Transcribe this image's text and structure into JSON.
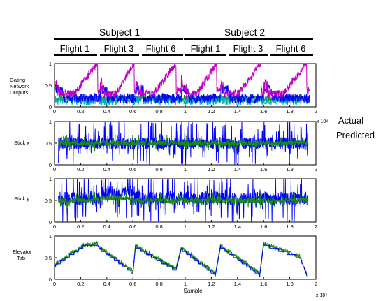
{
  "header": {
    "subjects": [
      {
        "label": "Subject 1",
        "flights": [
          "Flight 1",
          "Flight 3",
          "Flight 6"
        ]
      },
      {
        "label": "Subject 2",
        "flights": [
          "Flight 1",
          "Flight 3",
          "Flight 6"
        ]
      }
    ]
  },
  "legend": {
    "actual": {
      "label": "Actual",
      "color": "#0000ff"
    },
    "predicted": {
      "label": "Predicted",
      "color": "#1a8a1a"
    }
  },
  "chart_data": [
    {
      "type": "line",
      "ylabel": "Gating Network Outputs",
      "xlim": [
        0,
        20000
      ],
      "ylim": [
        0,
        1
      ],
      "xticks": [
        "0",
        "0.2",
        "0.4",
        "0.6",
        "0.8",
        "1",
        "1.2",
        "1.4",
        "1.6",
        "1.8",
        "2"
      ],
      "yticks": [
        "0",
        "0.5",
        "1"
      ],
      "x_multiplier_label": "x 10⁴",
      "series": [
        {
          "color": "#c000c0",
          "baseline": 0.3,
          "high_in_second_half_of_flight": 0.95,
          "approx_mean": 0.45
        },
        {
          "color": "#0000ff",
          "approx_mean": 0.2
        },
        {
          "color": "#00b0b0",
          "approx_mean": 0.15
        },
        {
          "color": "#1a8a1a",
          "approx_mean": 0.2
        }
      ]
    },
    {
      "type": "line",
      "ylabel": "Stick x",
      "xlim": [
        0,
        20000
      ],
      "ylim": [
        0,
        1
      ],
      "xticks": [
        "0",
        "0.2",
        "0.4",
        "0.6",
        "0.8",
        "1",
        "1.2",
        "1.4",
        "1.6",
        "1.8",
        "2"
      ],
      "yticks": [
        "0",
        "0.5",
        "1"
      ],
      "series": [
        {
          "name": "Actual",
          "color": "#0000ff",
          "approx_mean": 0.5,
          "spike_range": [
            0.1,
            0.9
          ]
        },
        {
          "name": "Predicted",
          "color": "#1a8a1a",
          "approx_mean": 0.5,
          "spike_range": [
            0.3,
            0.7
          ]
        }
      ]
    },
    {
      "type": "line",
      "ylabel": "Stick y",
      "xlim": [
        0,
        20000
      ],
      "ylim": [
        0,
        1
      ],
      "xticks": [
        "0",
        "0.2",
        "0.4",
        "0.6",
        "0.8",
        "1",
        "1.2",
        "1.4",
        "1.6",
        "1.8",
        "2"
      ],
      "yticks": [
        "0",
        "0.5",
        "1"
      ],
      "series": [
        {
          "name": "Actual",
          "color": "#0000ff",
          "approx_mean": 0.55,
          "spike_range": [
            0.05,
            0.95
          ]
        },
        {
          "name": "Predicted",
          "color": "#1a8a1a",
          "approx_mean": 0.5,
          "spike_range": [
            0.3,
            0.65
          ]
        }
      ]
    },
    {
      "type": "line",
      "ylabel": "Elevator Tab",
      "xlim": [
        0,
        20000
      ],
      "ylim": [
        0,
        1
      ],
      "xticks": [
        "0",
        "0.2",
        "0.4",
        "0.6",
        "0.8",
        "1",
        "1.2",
        "1.4",
        "1.6",
        "1.8",
        "2"
      ],
      "yticks": [
        "0",
        "0.5",
        "1"
      ],
      "xlabel": "Sample",
      "x_multiplier_label": "x 10⁴",
      "flight_profiles": [
        {
          "x": [
            0,
            2200,
            3300
          ],
          "y": [
            0.3,
            0.75,
            0.8
          ]
        },
        {
          "x": [
            3500,
            6000
          ],
          "y": [
            0.7,
            0.15
          ]
        },
        {
          "x": [
            6200,
            9300
          ],
          "y": [
            0.75,
            0.2
          ]
        },
        {
          "x": [
            9700,
            12300
          ],
          "y": [
            0.7,
            0.1
          ]
        },
        {
          "x": [
            12700,
            15700
          ],
          "y": [
            0.75,
            0.1
          ]
        },
        {
          "x": [
            16000,
            18800,
            19300
          ],
          "y": [
            0.8,
            0.5,
            0.1
          ]
        }
      ],
      "series": [
        {
          "name": "Actual",
          "color": "#0000ff"
        },
        {
          "name": "Predicted",
          "color": "#1a8a1a"
        }
      ]
    }
  ]
}
